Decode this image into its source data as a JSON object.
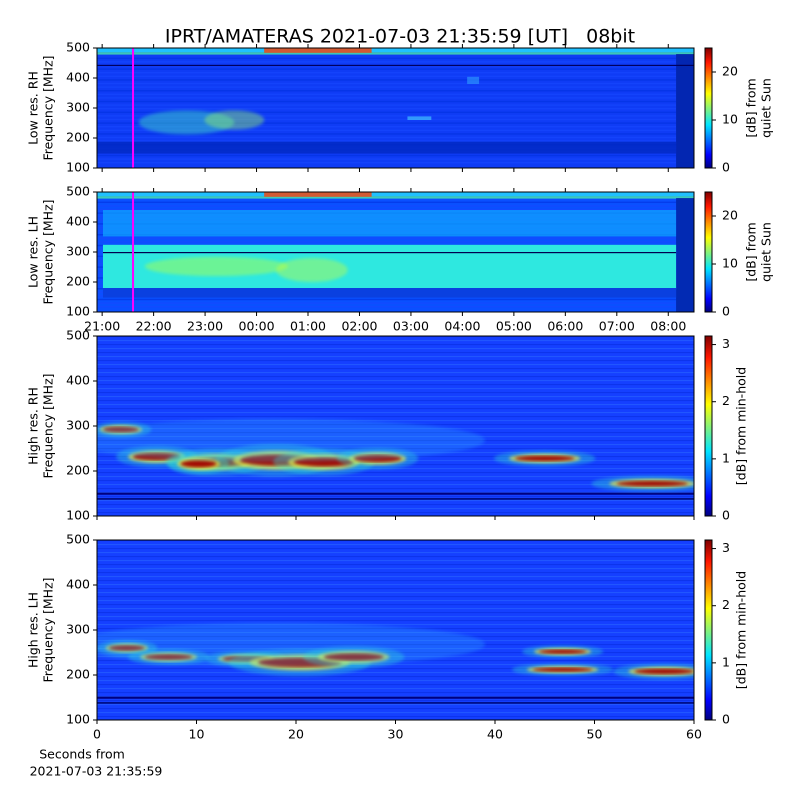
{
  "title": "IPRT/AMATERAS 2021-07-03 21:35:59 [UT]   08bit",
  "chart_data": [
    {
      "type": "heatmap",
      "ylabel": [
        "Low res. RH",
        "Frequency [MHz]"
      ],
      "xlim": [
        20.9,
        32.5
      ],
      "xticks": [
        21,
        22,
        23,
        24,
        25,
        26,
        27,
        28,
        29,
        30,
        31,
        32
      ],
      "ylim": [
        100,
        500
      ],
      "yticks": [
        100,
        200,
        300,
        400,
        500
      ],
      "clim": [
        0,
        25
      ],
      "cticks": [
        0,
        10,
        20
      ],
      "clabel": [
        "[dB] from",
        "quiet Sun"
      ],
      "vline": {
        "value": 21.6,
        "color": "#ff00ff"
      }
    },
    {
      "type": "heatmap",
      "ylabel": [
        "Low res. LH",
        "Frequency [MHz]"
      ],
      "xlim": [
        20.9,
        32.5
      ],
      "xticks": [
        {
          "value": 21,
          "label": "21:00"
        },
        {
          "value": 22,
          "label": "22:00"
        },
        {
          "value": 23,
          "label": "23:00"
        },
        {
          "value": 24,
          "label": "00:00"
        },
        {
          "value": 25,
          "label": "01:00"
        },
        {
          "value": 26,
          "label": "02:00"
        },
        {
          "value": 27,
          "label": "03:00"
        },
        {
          "value": 28,
          "label": "04:00"
        },
        {
          "value": 29,
          "label": "05:00"
        },
        {
          "value": 30,
          "label": "06:00"
        },
        {
          "value": 31,
          "label": "07:00"
        },
        {
          "value": 32,
          "label": "08:00"
        }
      ],
      "ylim": [
        100,
        500
      ],
      "yticks": [
        100,
        200,
        300,
        400,
        500
      ],
      "clim": [
        0,
        25
      ],
      "cticks": [
        0,
        10,
        20
      ],
      "clabel": [
        "[dB] from",
        "quiet Sun"
      ],
      "vline": {
        "value": 21.6,
        "color": "#ff00ff"
      }
    },
    {
      "type": "heatmap",
      "ylabel": [
        "High res. RH",
        "Frequency [MHz]"
      ],
      "xlim": [
        0,
        60
      ],
      "xticks": [
        0,
        10,
        20,
        30,
        40,
        50,
        60
      ],
      "ylim": [
        100,
        500
      ],
      "yticks": [
        100,
        200,
        300,
        400,
        500
      ],
      "clim": [
        0,
        3.15
      ],
      "cticks": [
        0,
        1,
        2,
        3
      ],
      "clabel": [
        "[dB] from min-hold"
      ]
    },
    {
      "type": "heatmap",
      "ylabel": [
        "High res. LH",
        "Frequency [MHz]"
      ],
      "xlim": [
        0,
        60
      ],
      "xticks": [
        0,
        10,
        20,
        30,
        40,
        50,
        60
      ],
      "ylim": [
        100,
        500
      ],
      "yticks": [
        100,
        200,
        300,
        400,
        500
      ],
      "clim": [
        0,
        3.15
      ],
      "cticks": [
        0,
        1,
        2,
        3
      ],
      "clabel": [
        "[dB] from min-hold"
      ],
      "xlabel": [
        "Seconds from",
        "2021-07-03 21:35:59"
      ]
    }
  ]
}
